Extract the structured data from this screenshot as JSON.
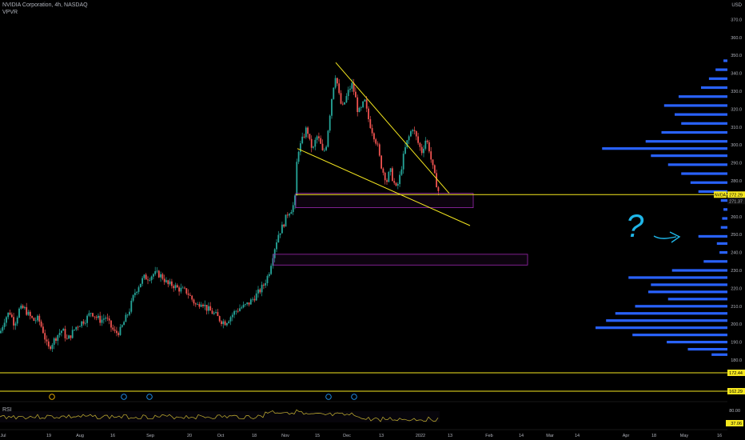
{
  "header": {
    "title": "NVIDIA Corporation, 4h, NASDAQ",
    "indicator": "VPVR",
    "currency": "USD"
  },
  "rsi": {
    "label": "RSI",
    "value_label": "37.06"
  },
  "colors": {
    "background": "#000000",
    "up": "#26a69a",
    "down": "#ef5350",
    "volume_profile": "#2962ff",
    "trendline": "#f5e71f",
    "box": "#9c27b0",
    "axis_text": "#b2b5be",
    "rsi_line": "#c8b432"
  },
  "price_labels": {
    "symbol_tag": "NVDA",
    "last_price": "272.29",
    "close_tag": "271.37",
    "support_high": "172.44",
    "support_low": "162.29"
  },
  "annotation": {
    "text": "?"
  },
  "chart_data": {
    "type": "candlestick",
    "title": "NVIDIA Corporation, 4h, NASDAQ",
    "ylim": [
      180,
      375
    ],
    "y_ticks": [
      180,
      190,
      200,
      210,
      220,
      230,
      240,
      250,
      260,
      270,
      280,
      290,
      300,
      310,
      320,
      330,
      340,
      350,
      360,
      370
    ],
    "x_tick_labels": [
      "Jul",
      "19",
      "Aug",
      "16",
      "Sep",
      "20",
      "Oct",
      "18",
      "Nov",
      "15",
      "Dec",
      "13",
      "2022",
      "13",
      "Feb",
      "14",
      "Mar",
      "14",
      "Apr",
      "18",
      "May",
      "16"
    ],
    "close_path": [
      [
        0,
        195
      ],
      [
        6,
        203
      ],
      [
        12,
        207
      ],
      [
        18,
        200
      ],
      [
        24,
        208
      ],
      [
        30,
        209
      ],
      [
        36,
        205
      ],
      [
        42,
        202
      ],
      [
        48,
        203
      ],
      [
        54,
        196
      ],
      [
        60,
        186
      ],
      [
        66,
        190
      ],
      [
        72,
        194
      ],
      [
        78,
        197
      ],
      [
        84,
        191
      ],
      [
        90,
        195
      ],
      [
        96,
        199
      ],
      [
        102,
        201
      ],
      [
        108,
        203
      ],
      [
        114,
        207
      ],
      [
        120,
        204
      ],
      [
        126,
        202
      ],
      [
        132,
        204
      ],
      [
        138,
        199
      ],
      [
        144,
        195
      ],
      [
        150,
        196
      ],
      [
        156,
        202
      ],
      [
        162,
        208
      ],
      [
        168,
        217
      ],
      [
        174,
        222
      ],
      [
        180,
        226
      ],
      [
        186,
        226
      ],
      [
        192,
        228
      ],
      [
        198,
        228
      ],
      [
        204,
        226
      ],
      [
        210,
        222
      ],
      [
        216,
        222
      ],
      [
        222,
        220
      ],
      [
        228,
        219
      ],
      [
        234,
        218
      ],
      [
        240,
        214
      ],
      [
        246,
        210
      ],
      [
        252,
        213
      ],
      [
        258,
        209
      ],
      [
        264,
        207
      ],
      [
        270,
        205
      ],
      [
        276,
        202
      ],
      [
        282,
        201
      ],
      [
        288,
        204
      ],
      [
        294,
        207
      ],
      [
        300,
        209
      ],
      [
        306,
        210
      ],
      [
        312,
        212
      ],
      [
        318,
        215
      ],
      [
        324,
        218
      ],
      [
        330,
        222
      ],
      [
        336,
        228
      ],
      [
        342,
        240
      ],
      [
        348,
        250
      ],
      [
        354,
        255
      ],
      [
        360,
        262
      ],
      [
        366,
        265
      ],
      [
        369,
        270
      ],
      [
        372,
        296
      ],
      [
        376,
        300
      ],
      [
        380,
        305
      ],
      [
        384,
        310
      ],
      [
        388,
        300
      ],
      [
        392,
        298
      ],
      [
        396,
        305
      ],
      [
        400,
        302
      ],
      [
        404,
        295
      ],
      [
        408,
        300
      ],
      [
        412,
        315
      ],
      [
        416,
        330
      ],
      [
        420,
        340
      ],
      [
        424,
        328
      ],
      [
        428,
        320
      ],
      [
        432,
        325
      ],
      [
        436,
        330
      ],
      [
        440,
        334
      ],
      [
        444,
        328
      ],
      [
        448,
        318
      ],
      [
        452,
        320
      ],
      [
        456,
        325
      ],
      [
        460,
        316
      ],
      [
        464,
        310
      ],
      [
        468,
        305
      ],
      [
        472,
        300
      ],
      [
        476,
        290
      ],
      [
        480,
        284
      ],
      [
        484,
        280
      ],
      [
        488,
        286
      ],
      [
        492,
        280
      ],
      [
        496,
        275
      ],
      [
        500,
        282
      ],
      [
        504,
        292
      ],
      [
        508,
        300
      ],
      [
        512,
        305
      ],
      [
        516,
        310
      ],
      [
        520,
        305
      ],
      [
        524,
        300
      ],
      [
        528,
        296
      ],
      [
        532,
        303
      ],
      [
        536,
        300
      ],
      [
        540,
        290
      ],
      [
        544,
        282
      ],
      [
        548,
        275
      ],
      [
        550,
        272
      ]
    ],
    "volume_profile_bins": [
      {
        "price": 347,
        "volume": 0.03
      },
      {
        "price": 342,
        "volume": 0.09
      },
      {
        "price": 337,
        "volume": 0.14
      },
      {
        "price": 332,
        "volume": 0.2
      },
      {
        "price": 327,
        "volume": 0.37
      },
      {
        "price": 322,
        "volume": 0.48
      },
      {
        "price": 317,
        "volume": 0.4
      },
      {
        "price": 312,
        "volume": 0.35
      },
      {
        "price": 307,
        "volume": 0.5
      },
      {
        "price": 302,
        "volume": 0.62
      },
      {
        "price": 298,
        "volume": 0.95
      },
      {
        "price": 294,
        "volume": 0.58
      },
      {
        "price": 289,
        "volume": 0.45
      },
      {
        "price": 284,
        "volume": 0.35
      },
      {
        "price": 279,
        "volume": 0.28
      },
      {
        "price": 274,
        "volume": 0.22
      },
      {
        "price": 269,
        "volume": 0.05
      },
      {
        "price": 264,
        "volume": 0.03
      },
      {
        "price": 259,
        "volume": 0.04
      },
      {
        "price": 254,
        "volume": 0.05
      },
      {
        "price": 249,
        "volume": 0.22
      },
      {
        "price": 245,
        "volume": 0.08
      },
      {
        "price": 240,
        "volume": 0.06
      },
      {
        "price": 235,
        "volume": 0.18
      },
      {
        "price": 230,
        "volume": 0.42
      },
      {
        "price": 226,
        "volume": 0.75
      },
      {
        "price": 222,
        "volume": 0.58
      },
      {
        "price": 218,
        "volume": 0.6
      },
      {
        "price": 214,
        "volume": 0.45
      },
      {
        "price": 210,
        "volume": 0.7
      },
      {
        "price": 206,
        "volume": 0.85
      },
      {
        "price": 202,
        "volume": 0.92
      },
      {
        "price": 198,
        "volume": 1.0
      },
      {
        "price": 194,
        "volume": 0.72
      },
      {
        "price": 190,
        "volume": 0.46
      },
      {
        "price": 186,
        "volume": 0.3
      },
      {
        "price": 183,
        "volume": 0.12
      }
    ],
    "trendlines": [
      {
        "from": [
          420,
          346
        ],
        "to": [
          562,
          273
        ]
      },
      {
        "from": [
          372,
          298
        ],
        "to": [
          588,
          255
        ]
      }
    ],
    "boxes": [
      {
        "x0": 370,
        "x1": 592,
        "price_top": 273,
        "price_bottom": 265
      },
      {
        "x0": 342,
        "x1": 660,
        "price_top": 239,
        "price_bottom": 233
      }
    ],
    "horizontal_lines": [
      {
        "price": 272.29
      },
      {
        "price": 172.44
      },
      {
        "price": 162.29
      }
    ],
    "rsi_levels": [
      "80.00",
      "37.06"
    ]
  }
}
